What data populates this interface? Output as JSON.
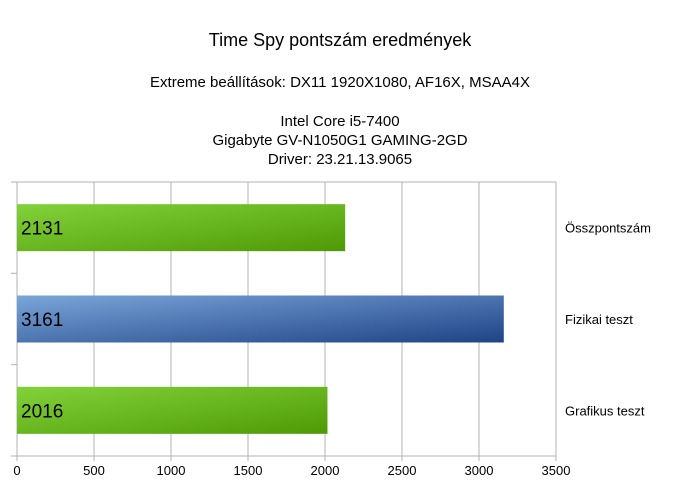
{
  "chart_data": {
    "type": "bar",
    "orientation": "horizontal",
    "title": "Time Spy pontszám eredmények",
    "subtitle_lines": [
      "Extreme beállítások: DX11 1920X1080, AF16X, MSAA4X",
      "",
      "Intel Core i5-7400",
      "Gigabyte GV-N1050G1 GAMING-2GD",
      "Driver: 23.21.13.9065"
    ],
    "categories": [
      "Összpontszám",
      "Fizikai teszt",
      "Grafikus teszt"
    ],
    "values": [
      2131,
      3161,
      2016
    ],
    "bar_colors": [
      "green",
      "blue",
      "green"
    ],
    "xlim": [
      0,
      3500
    ],
    "xticks": [
      "0",
      "500",
      "1000",
      "1500",
      "2000",
      "2500",
      "3000",
      "3500"
    ],
    "grid": true,
    "legend": "right"
  }
}
